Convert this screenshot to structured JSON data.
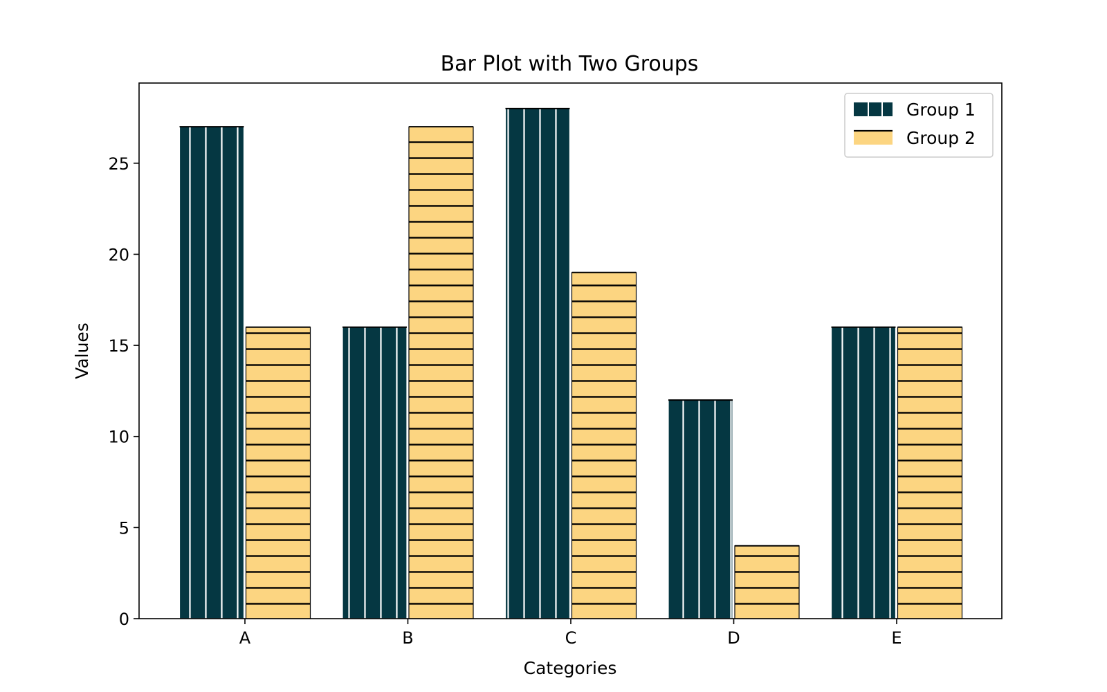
{
  "chart_data": {
    "type": "bar",
    "title": "Bar Plot with Two Groups",
    "xlabel": "Categories",
    "ylabel": "Values",
    "categories": [
      "A",
      "B",
      "C",
      "D",
      "E"
    ],
    "series": [
      {
        "name": "Group 1",
        "values": [
          27,
          16,
          28,
          12,
          16
        ],
        "color": "#053742",
        "hatch": "vertical",
        "hatch_color": "#ffffff"
      },
      {
        "name": "Group 2",
        "values": [
          16,
          27,
          19,
          4,
          16
        ],
        "color": "#fcd581",
        "hatch": "horizontal",
        "hatch_color": "#000000"
      }
    ],
    "ylim": [
      0,
      29.4
    ],
    "yticks": [
      0,
      5,
      10,
      15,
      20,
      25
    ],
    "grid": false,
    "legend_position": "top-right"
  }
}
